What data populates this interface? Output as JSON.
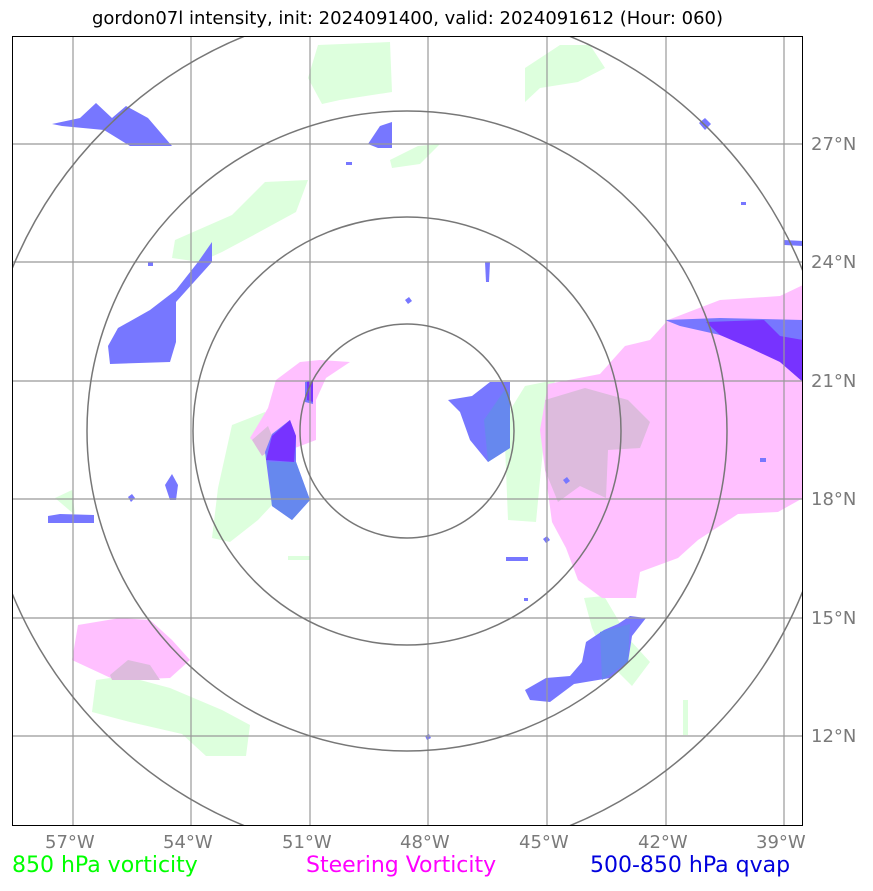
{
  "title": "gordon07l intensity, init: 2024091400, valid: 2024091612 (Hour: 060)",
  "longitude_labels": [
    "57°W",
    "54°W",
    "51°W",
    "48°W",
    "45°W",
    "42°W",
    "39°W"
  ],
  "latitude_labels": [
    "27°N",
    "24°N",
    "21°N",
    "18°N",
    "15°N",
    "12°N"
  ],
  "legend": {
    "vort850": {
      "label": "850 hPa vorticity",
      "color": "#00ff00"
    },
    "steering": {
      "label": "Steering Vorticity",
      "color": "#ff00ff"
    },
    "qvap": {
      "label": "500-850 hPa qvap",
      "color": "#0000dd"
    }
  },
  "colors": {
    "vort850_fill": "#ddffdd",
    "steering_fill": "#ffc0ff",
    "qvap_fill": "#7777ff",
    "qvap_dark": "#7733ff",
    "grid": "#999999",
    "range_rings": "#777777"
  }
}
